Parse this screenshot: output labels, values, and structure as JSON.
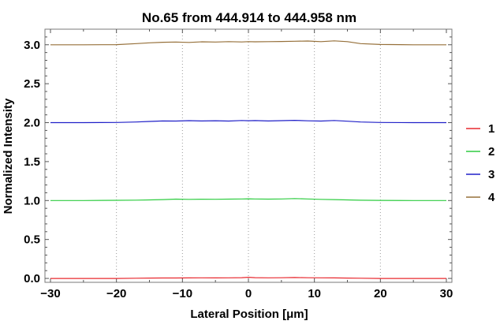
{
  "chart_data": {
    "type": "line",
    "title": "No.65  from 444.914 to 444.958 nm",
    "xlabel": "Lateral Position [μm]",
    "ylabel": "Normalized Intensity",
    "xlim": [
      -30,
      30
    ],
    "ylim": [
      -0.05,
      3.2
    ],
    "x_ticks": [
      "−30",
      "−20",
      "−10",
      "0",
      "10",
      "20",
      "30"
    ],
    "x_tick_values": [
      -30,
      -20,
      -10,
      0,
      10,
      20,
      30
    ],
    "y_ticks": [
      "0.0",
      "0.5",
      "1.0",
      "1.5",
      "2.0",
      "2.5",
      "3.0"
    ],
    "y_tick_values": [
      0,
      0.5,
      1.0,
      1.5,
      2.0,
      2.5,
      3.0
    ],
    "grid_x": [
      -20,
      -10,
      0,
      10,
      20
    ],
    "legend_position": "right",
    "x": [
      -30,
      -25,
      -20,
      -17,
      -15,
      -13,
      -11,
      -9,
      -7,
      -5,
      -3,
      -1,
      0,
      1,
      3,
      5,
      7,
      9,
      11,
      13,
      15,
      17,
      20,
      25,
      30
    ],
    "series": [
      {
        "name": "1",
        "color": "#e8282e",
        "values": [
          0.0,
          0.0,
          0.0,
          0.003,
          0.005,
          0.006,
          0.006,
          0.007,
          0.008,
          0.007,
          0.008,
          0.01,
          0.015,
          0.01,
          0.008,
          0.009,
          0.012,
          0.009,
          0.008,
          0.007,
          0.005,
          0.003,
          0.0,
          0.0,
          0.0
        ]
      },
      {
        "name": "2",
        "color": "#2ecc40",
        "values": [
          1.0,
          1.0,
          1.003,
          1.005,
          1.008,
          1.012,
          1.018,
          1.015,
          1.017,
          1.016,
          1.018,
          1.02,
          1.022,
          1.02,
          1.018,
          1.02,
          1.025,
          1.02,
          1.015,
          1.012,
          1.008,
          1.004,
          1.002,
          1.0,
          1.0
        ]
      },
      {
        "name": "3",
        "color": "#2020c8",
        "values": [
          2.0,
          2.0,
          2.002,
          2.008,
          2.015,
          2.022,
          2.02,
          2.026,
          2.022,
          2.025,
          2.02,
          2.028,
          2.025,
          2.027,
          2.022,
          2.026,
          2.03,
          2.024,
          2.02,
          2.028,
          2.018,
          2.008,
          2.002,
          2.0,
          2.0
        ]
      },
      {
        "name": "4",
        "color": "#96703a",
        "values": [
          3.0,
          3.0,
          3.002,
          3.015,
          3.025,
          3.032,
          3.035,
          3.03,
          3.038,
          3.035,
          3.04,
          3.036,
          3.04,
          3.038,
          3.04,
          3.042,
          3.045,
          3.048,
          3.04,
          3.05,
          3.04,
          3.015,
          3.004,
          3.0,
          3.0
        ]
      }
    ]
  }
}
